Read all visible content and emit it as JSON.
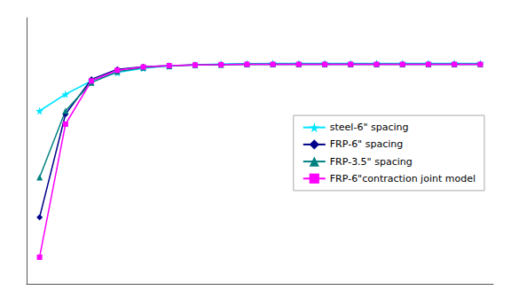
{
  "chart_data": {
    "type": "line",
    "series": [
      {
        "name": "steel-6\" spacing",
        "color": "#00e5ff",
        "marker": "star",
        "x": [
          1,
          2,
          3,
          4,
          5,
          6,
          7,
          8,
          9,
          10,
          11,
          12,
          13,
          14,
          15,
          16,
          17,
          18
        ],
        "values": [
          -0.00038,
          -0.00033,
          -0.00029,
          -0.000265,
          -0.000252,
          -0.000245,
          -0.000241,
          -0.000239,
          -0.000238,
          -0.000237,
          -0.000237,
          -0.000237,
          -0.000237,
          -0.000237,
          -0.000237,
          -0.000237,
          -0.000237,
          -0.000237
        ]
      },
      {
        "name": "FRP-6\" spacing",
        "color": "#00008b",
        "marker": "diamond",
        "x": [
          1,
          2,
          3,
          4,
          5,
          6,
          7,
          8,
          9,
          10,
          11,
          12,
          13,
          14,
          15,
          16,
          17,
          18
        ],
        "values": [
          -0.0007,
          -0.00039,
          -0.000285,
          -0.000255,
          -0.000247,
          -0.000244,
          -0.000242,
          -0.000241,
          -0.00024,
          -0.00024,
          -0.00024,
          -0.00024,
          -0.00024,
          -0.00024,
          -0.00024,
          -0.00024,
          -0.00024,
          -0.00024
        ]
      },
      {
        "name": "FRP-3.5\" spacing",
        "color": "#008080",
        "marker": "triangle",
        "x": [
          1,
          2,
          3,
          4,
          5,
          6,
          7,
          8,
          9,
          10,
          11,
          12,
          13,
          14,
          15,
          16,
          17,
          18
        ],
        "values": [
          -0.00058,
          -0.00038,
          -0.000295,
          -0.000262,
          -0.00025,
          -0.000245,
          -0.000242,
          -0.000241,
          -0.00024,
          -0.00024,
          -0.00024,
          -0.00024,
          -0.00024,
          -0.00024,
          -0.00024,
          -0.00024,
          -0.00024,
          -0.00024
        ]
      },
      {
        "name": "FRP-6\"contraction joint model",
        "color": "#ff00ff",
        "marker": "square",
        "x": [
          1,
          2,
          3,
          4,
          5,
          6,
          7,
          8,
          9,
          10,
          11,
          12,
          13,
          14,
          15,
          16,
          17,
          18
        ],
        "values": [
          -0.00082,
          -0.00042,
          -0.00029,
          -0.000258,
          -0.000248,
          -0.000244,
          -0.000242,
          -0.000241,
          -0.00024,
          -0.00024,
          -0.00024,
          -0.00024,
          -0.00024,
          -0.00024,
          -0.00024,
          -0.00024,
          -0.00024,
          -0.00024
        ]
      }
    ],
    "xlim": [
      0.5,
      18.5
    ],
    "ylim": [
      -0.0009,
      -0.0001
    ],
    "tick_labels": false,
    "grid": false,
    "legend": "right"
  }
}
